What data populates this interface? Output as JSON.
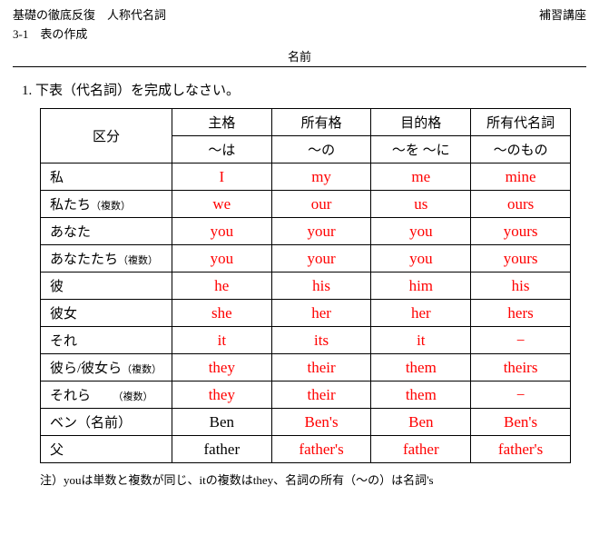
{
  "header": {
    "title_left": "基礎の徹底反復　人称代名詞",
    "title_right": "補習講座",
    "subtitle": "3-1　表の作成",
    "name_label": "名前"
  },
  "instruction": "1. 下表（代名詞）を完成しなさい。",
  "table": {
    "category_header": "区分",
    "col_headers_top": [
      "主格",
      "所有格",
      "目的格",
      "所有代名詞"
    ],
    "col_headers_bottom": [
      "〜は",
      "〜の",
      "〜を 〜に",
      "〜のもの"
    ],
    "rows": [
      {
        "label": "私",
        "plural": "",
        "cells": [
          "I",
          "my",
          "me",
          "mine"
        ],
        "first_black": false
      },
      {
        "label": "私たち",
        "plural": "（複数）",
        "cells": [
          "we",
          "our",
          "us",
          "ours"
        ],
        "first_black": false
      },
      {
        "label": "あなた",
        "plural": "",
        "cells": [
          "you",
          "your",
          "you",
          "yours"
        ],
        "first_black": false
      },
      {
        "label": "あなたたち",
        "plural": "（複数）",
        "cells": [
          "you",
          "your",
          "you",
          "yours"
        ],
        "first_black": false
      },
      {
        "label": "彼",
        "plural": "",
        "cells": [
          "he",
          "his",
          "him",
          "his"
        ],
        "first_black": false
      },
      {
        "label": "彼女",
        "plural": "",
        "cells": [
          "she",
          "her",
          "her",
          "hers"
        ],
        "first_black": false
      },
      {
        "label": "それ",
        "plural": "",
        "cells": [
          "it",
          "its",
          "it",
          "−"
        ],
        "first_black": false
      },
      {
        "label": "彼ら/彼女ら",
        "plural": "（複数）",
        "cells": [
          "they",
          "their",
          "them",
          "theirs"
        ],
        "first_black": false
      },
      {
        "label": "それら　　",
        "plural": "（複数）",
        "cells": [
          "they",
          "their",
          "them",
          "−"
        ],
        "first_black": false
      },
      {
        "label": "ベン（名前）",
        "plural": "",
        "cells": [
          "Ben",
          "Ben's",
          "Ben",
          "Ben's"
        ],
        "first_black": true
      },
      {
        "label": "父",
        "plural": "",
        "cells": [
          "father",
          "father's",
          "father",
          "father's"
        ],
        "first_black": true
      }
    ]
  },
  "footnote": {
    "prefix": "注）",
    "you_word": "you",
    "mid1": "は単数と複数が同じ、",
    "it_word": "it",
    "mid2": "の複数は",
    "they_word": "they",
    "mid3": "、名詞の所有（〜の）は名詞",
    "s_suffix": "'s"
  },
  "bottom": {
    "left": "",
    "right": ""
  }
}
